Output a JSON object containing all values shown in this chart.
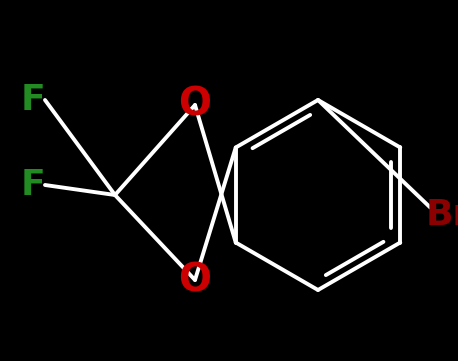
{
  "background_color": "#000000",
  "atom_colors": {
    "O": "#cc0000",
    "F": "#228B22",
    "Br": "#8B0000",
    "bond": "#ffffff"
  },
  "font_sizes": {
    "O": 28,
    "F": 26,
    "Br": 26
  },
  "bond_width": 2.8,
  "figsize": [
    4.58,
    3.61
  ],
  "dpi": 100,
  "xlim": [
    0,
    458
  ],
  "ylim": [
    0,
    361
  ]
}
